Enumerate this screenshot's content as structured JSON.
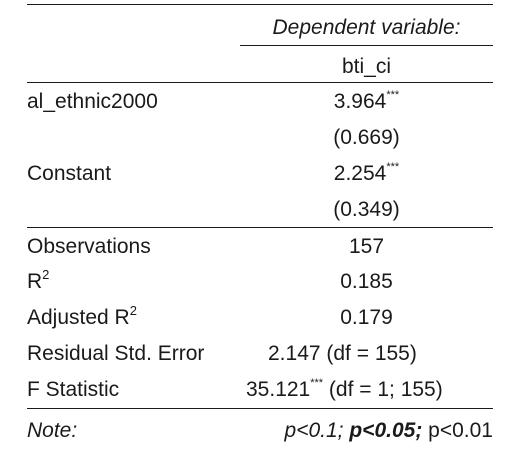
{
  "header": {
    "dependent_label": "Dependent variable:",
    "dependent_name": "bti_ci"
  },
  "coefficients": [
    {
      "name": "al_ethnic2000",
      "estimate": "3.964",
      "stars": "***",
      "se": "(0.669)"
    },
    {
      "name": "Constant",
      "estimate": "2.254",
      "stars": "***",
      "se": "(0.349)"
    }
  ],
  "stats": {
    "observations": {
      "label": "Observations",
      "value": "157"
    },
    "r2": {
      "label": "R",
      "sup": "2",
      "value": "0.185"
    },
    "adj_r2": {
      "label": "Adjusted R",
      "sup": "2",
      "value": "0.179"
    },
    "rse": {
      "label": "Residual Std. Error",
      "value": "2.147 (df = 155)"
    },
    "fstat": {
      "label": "F Statistic",
      "value": "35.121",
      "stars": "***",
      "df": " (df = 1; 155)"
    }
  },
  "note": {
    "label": "Note:",
    "p1": "p<0.1;",
    "p2": "p<0.05;",
    "p3": "p<0.01"
  }
}
